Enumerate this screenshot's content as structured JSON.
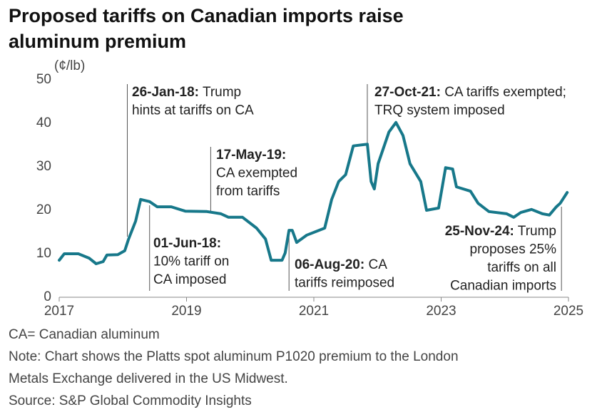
{
  "chart_data": {
    "type": "line",
    "title": [
      "Proposed tariffs on Canadian imports raise",
      "aluminum premium"
    ],
    "y_label": "(¢/lb)",
    "color": "#17788a",
    "xlim": [
      2017,
      2025
    ],
    "xticks": [
      2017,
      2019,
      2021,
      2023,
      2025
    ],
    "ylim": [
      0,
      50
    ],
    "yticks": [
      0,
      10,
      20,
      30,
      40,
      50
    ],
    "x": [
      2017.0,
      2017.08,
      2017.3,
      2017.47,
      2017.58,
      2017.69,
      2017.75,
      2017.92,
      2018.03,
      2018.09,
      2018.2,
      2018.28,
      2018.42,
      2018.54,
      2018.76,
      2018.98,
      2019.32,
      2019.54,
      2019.66,
      2019.88,
      2020.1,
      2020.24,
      2020.33,
      2020.5,
      2020.55,
      2020.61,
      2020.66,
      2020.73,
      2020.89,
      2021.17,
      2021.28,
      2021.39,
      2021.5,
      2021.62,
      2021.84,
      2021.9,
      2021.95,
      2022.01,
      2022.18,
      2022.29,
      2022.4,
      2022.51,
      2022.68,
      2022.77,
      2022.96,
      2023.07,
      2023.18,
      2023.24,
      2023.46,
      2023.58,
      2023.75,
      2024.03,
      2024.14,
      2024.25,
      2024.42,
      2024.59,
      2024.7,
      2024.81,
      2024.87,
      2024.98
    ],
    "values": [
      8.5,
      10,
      10,
      9,
      7.7,
      8.2,
      9.7,
      9.8,
      10.7,
      13.4,
      17.5,
      22.5,
      22,
      20.8,
      20.8,
      19.8,
      19.7,
      19.2,
      18.4,
      18.4,
      15.9,
      13.4,
      8.5,
      8.5,
      10.2,
      15.4,
      15.4,
      12.6,
      14.3,
      15.9,
      22.5,
      26.6,
      28.2,
      34.8,
      35.2,
      26.6,
      24.9,
      30.7,
      38,
      40.2,
      37.2,
      30.7,
      26.6,
      20,
      20.5,
      29.8,
      29.5,
      25.4,
      24.4,
      21.6,
      19.7,
      19.2,
      18.4,
      19.5,
      20.2,
      19.2,
      18.9,
      20.8,
      21.6,
      24.1
    ],
    "annotations": [
      {
        "x": 2018.07,
        "date": "26-Jan-18:",
        "lines": [
          "Trump",
          "hints at tariffs on CA"
        ]
      },
      {
        "x": 2018.42,
        "date": "01-Jun-18:",
        "lines": [
          "",
          "10% tariff on",
          "CA imposed"
        ]
      },
      {
        "x": 2019.38,
        "date": "17-May-19:",
        "lines": [
          "",
          "CA exempted",
          "from tariffs"
        ]
      },
      {
        "x": 2020.61,
        "date": "06-Aug-20:",
        "lines": [
          "CA",
          "tariffs reimposed"
        ]
      },
      {
        "x": 2021.84,
        "date": "27-Oct-21:",
        "lines": [
          "CA tariffs exempted;",
          "TRQ system imposed"
        ]
      },
      {
        "x": 2024.89,
        "date": "25-Nov-24:",
        "lines": [
          "Trump",
          "proposes 25%",
          "tariffs on all",
          "Canadian imports"
        ]
      }
    ],
    "footnotes": [
      "CA= Canadian aluminum",
      "Note: Chart shows the Platts spot aluminum P1020 premium to the London",
      "Metals Exchange delivered in the US Midwest.",
      "Source: S&P Global Commodity Insights"
    ]
  }
}
